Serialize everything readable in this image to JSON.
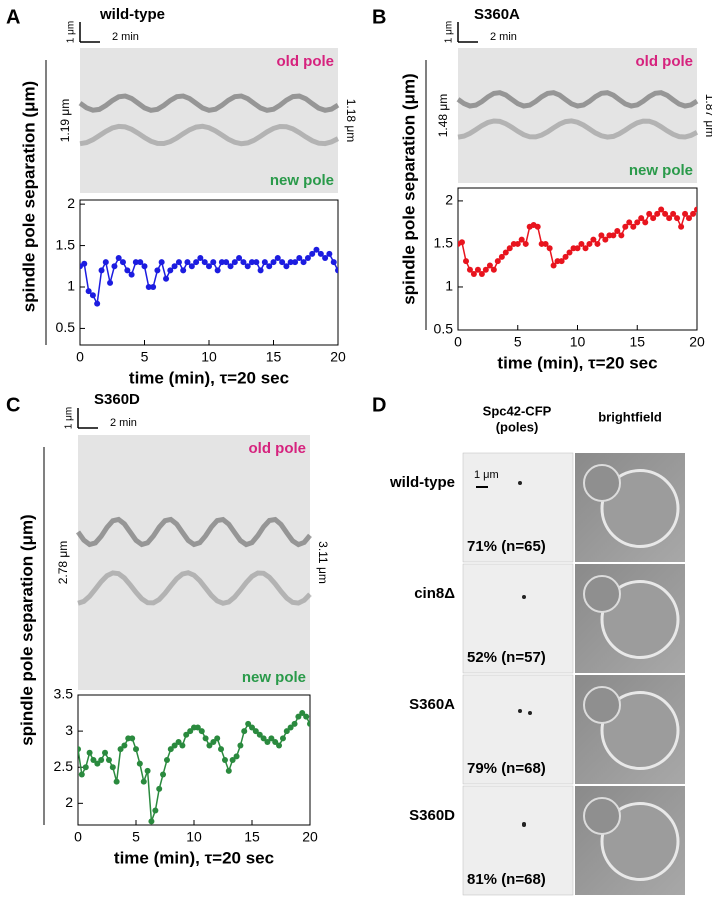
{
  "chart_data": [
    {
      "type": "line",
      "label": "A",
      "title": "wild-type",
      "x_label": "time (min), τ=20 sec",
      "y_label": "spindle pole separation (μm)",
      "annotations": {
        "scale_length": "1 μm",
        "scale_time": "2 min",
        "old_pole": "old pole",
        "new_pole": "new pole",
        "left_width": "1.19 μm",
        "right_width": "1.18 μm"
      },
      "x": [
        0,
        0.33,
        0.67,
        1,
        1.33,
        1.67,
        2,
        2.33,
        2.67,
        3,
        3.33,
        3.67,
        4,
        4.33,
        4.67,
        5,
        5.33,
        5.67,
        6,
        6.33,
        6.67,
        7,
        7.33,
        7.67,
        8,
        8.33,
        8.67,
        9,
        9.33,
        9.67,
        10,
        10.33,
        10.67,
        11,
        11.33,
        11.67,
        12,
        12.33,
        12.67,
        13,
        13.33,
        13.67,
        14,
        14.33,
        14.67,
        15,
        15.33,
        15.67,
        16,
        16.33,
        16.67,
        17,
        17.33,
        17.67,
        18,
        18.33,
        18.67,
        19,
        19.33,
        19.67,
        20
      ],
      "color": "#1c1ce0",
      "values": [
        1.25,
        1.28,
        0.95,
        0.9,
        0.8,
        1.2,
        1.3,
        1.05,
        1.25,
        1.35,
        1.3,
        1.2,
        1.15,
        1.3,
        1.3,
        1.25,
        1.0,
        1.0,
        1.2,
        1.3,
        1.1,
        1.2,
        1.25,
        1.3,
        1.2,
        1.3,
        1.25,
        1.3,
        1.35,
        1.3,
        1.25,
        1.3,
        1.2,
        1.3,
        1.3,
        1.25,
        1.3,
        1.35,
        1.3,
        1.25,
        1.3,
        1.3,
        1.2,
        1.3,
        1.25,
        1.3,
        1.35,
        1.3,
        1.25,
        1.3,
        1.3,
        1.35,
        1.3,
        1.35,
        1.4,
        1.45,
        1.4,
        1.35,
        1.4,
        1.3,
        1.2
      ],
      "xlim": [
        0,
        20
      ],
      "xticks": [
        0,
        5,
        10,
        15,
        20
      ],
      "ylim": [
        0.3,
        2.05
      ],
      "yticks": [
        0.5,
        1,
        1.5,
        2
      ]
    },
    {
      "type": "line",
      "label": "B",
      "title": "S360A",
      "x_label": "time (min), τ=20 sec",
      "y_label": "spindle pole separation (μm)",
      "annotations": {
        "scale_length": "1 μm",
        "scale_time": "2 min",
        "old_pole": "old pole",
        "new_pole": "new pole",
        "left_width": "1.48 μm",
        "right_width": "1.87 μm"
      },
      "x": [
        0,
        0.33,
        0.67,
        1,
        1.33,
        1.67,
        2,
        2.33,
        2.67,
        3,
        3.33,
        3.67,
        4,
        4.33,
        4.67,
        5,
        5.33,
        5.67,
        6,
        6.33,
        6.67,
        7,
        7.33,
        7.67,
        8,
        8.33,
        8.67,
        9,
        9.33,
        9.67,
        10,
        10.33,
        10.67,
        11,
        11.33,
        11.67,
        12,
        12.33,
        12.67,
        13,
        13.33,
        13.67,
        14,
        14.33,
        14.67,
        15,
        15.33,
        15.67,
        16,
        16.33,
        16.67,
        17,
        17.33,
        17.67,
        18,
        18.33,
        18.67,
        19,
        19.33,
        19.67,
        20
      ],
      "color": "#e8141e",
      "values": [
        1.5,
        1.52,
        1.3,
        1.2,
        1.15,
        1.2,
        1.15,
        1.2,
        1.25,
        1.2,
        1.3,
        1.35,
        1.4,
        1.45,
        1.5,
        1.5,
        1.55,
        1.5,
        1.7,
        1.72,
        1.7,
        1.5,
        1.5,
        1.45,
        1.25,
        1.3,
        1.3,
        1.35,
        1.4,
        1.45,
        1.45,
        1.5,
        1.45,
        1.5,
        1.55,
        1.5,
        1.6,
        1.55,
        1.6,
        1.6,
        1.65,
        1.6,
        1.7,
        1.75,
        1.7,
        1.75,
        1.8,
        1.75,
        1.85,
        1.8,
        1.85,
        1.9,
        1.85,
        1.8,
        1.85,
        1.8,
        1.7,
        1.85,
        1.8,
        1.85,
        1.9
      ],
      "xlim": [
        0,
        20
      ],
      "xticks": [
        0,
        5,
        10,
        15,
        20
      ],
      "ylim": [
        0.5,
        2.15
      ],
      "yticks": [
        0.5,
        1,
        1.5,
        2
      ]
    },
    {
      "type": "line",
      "label": "C",
      "title": "S360D",
      "x_label": "time (min), τ=20 sec",
      "y_label": "spindle pole separation (μm)",
      "annotations": {
        "scale_length": "1 μm",
        "scale_time": "2 min",
        "old_pole": "old pole",
        "new_pole": "new pole",
        "left_width": "2.78 μm",
        "right_width": "3.11 μm"
      },
      "x": [
        0,
        0.33,
        0.67,
        1,
        1.33,
        1.67,
        2,
        2.33,
        2.67,
        3,
        3.33,
        3.67,
        4,
        4.33,
        4.67,
        5,
        5.33,
        5.67,
        6,
        6.33,
        6.67,
        7,
        7.33,
        7.67,
        8,
        8.33,
        8.67,
        9,
        9.33,
        9.67,
        10,
        10.33,
        10.67,
        11,
        11.33,
        11.67,
        12,
        12.33,
        12.67,
        13,
        13.33,
        13.67,
        14,
        14.33,
        14.67,
        15,
        15.33,
        15.67,
        16,
        16.33,
        16.67,
        17,
        17.33,
        17.67,
        18,
        18.33,
        18.67,
        19,
        19.33,
        19.67,
        20
      ],
      "color": "#2a8a3e",
      "values": [
        2.75,
        2.4,
        2.5,
        2.7,
        2.6,
        2.55,
        2.6,
        2.7,
        2.6,
        2.5,
        2.3,
        2.75,
        2.8,
        2.9,
        2.9,
        2.75,
        2.55,
        2.3,
        2.45,
        1.75,
        1.9,
        2.2,
        2.4,
        2.6,
        2.75,
        2.8,
        2.85,
        2.8,
        2.95,
        3.0,
        3.05,
        3.05,
        3.0,
        2.9,
        2.8,
        2.85,
        2.9,
        2.75,
        2.6,
        2.45,
        2.6,
        2.65,
        2.8,
        3.0,
        3.1,
        3.05,
        3.0,
        2.95,
        2.9,
        2.85,
        2.9,
        2.85,
        2.8,
        2.9,
        3.0,
        3.05,
        3.1,
        3.2,
        3.25,
        3.2,
        3.1
      ],
      "xlim": [
        0,
        20
      ],
      "xticks": [
        0,
        5,
        10,
        15,
        20
      ],
      "ylim": [
        1.7,
        3.5
      ],
      "yticks": [
        2,
        2.5,
        3,
        3.5
      ]
    }
  ],
  "panel_d": {
    "label": "D",
    "column_1": [
      "Spc42-CFP",
      "(poles)"
    ],
    "column_2": "brightfield",
    "scale": "1 μm",
    "rows": [
      {
        "name": "wild-type",
        "percent": "71% (n=65)"
      },
      {
        "name": "cin8Δ",
        "percent": "52% (n=57)"
      },
      {
        "name": "S360A",
        "percent": "79% (n=68)"
      },
      {
        "name": "S360D",
        "percent": "81% (n=68)"
      }
    ]
  }
}
